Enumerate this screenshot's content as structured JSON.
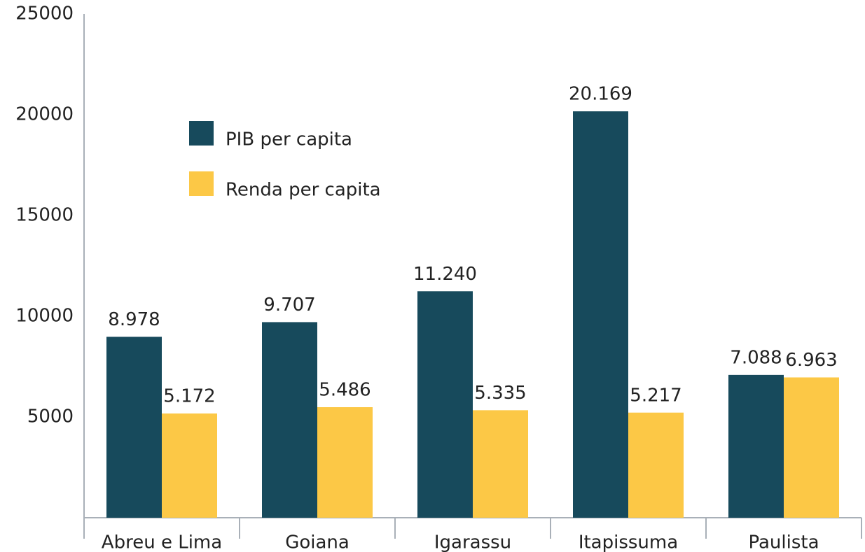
{
  "chart_data": {
    "type": "bar",
    "categories": [
      "Abreu e Lima",
      "Goiana",
      "Igarassu",
      "Itapissuma",
      "Paulista"
    ],
    "series": [
      {
        "name": "PIB per capita",
        "color": "#174a5c",
        "values": [
          8978,
          9707,
          11240,
          20169,
          7088
        ],
        "value_labels": [
          "8.978",
          "9.707",
          "11.240",
          "20.169",
          "7.088"
        ]
      },
      {
        "name": "Renda per capita",
        "color": "#fcc846",
        "values": [
          5172,
          5486,
          5335,
          5217,
          6963
        ],
        "value_labels": [
          "5.172",
          "5.486",
          "5.335",
          "5.217",
          "6.963"
        ]
      }
    ],
    "ylim": [
      0,
      25000
    ],
    "yticks": [
      5000,
      10000,
      15000,
      20000,
      25000
    ],
    "grid": false,
    "legend": "upper left"
  }
}
